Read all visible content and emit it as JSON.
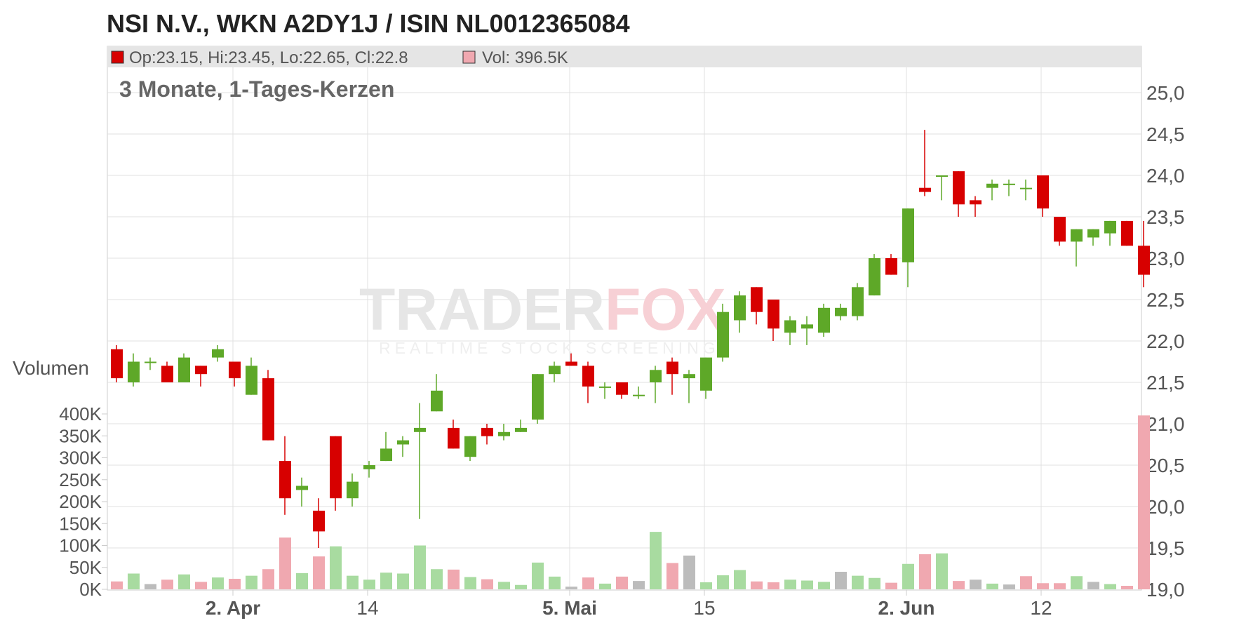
{
  "title": "NSI N.V., WKN A2DY1J / ISIN NL0012365084",
  "subtitle": "3 Monate, 1-Tages-Kerzen",
  "info": {
    "ohlc": "Op:23.15, Hi:23.45, Lo:22.65, Cl:22.8",
    "vol": "Vol: 396.5K"
  },
  "volume_label": "Volumen",
  "watermark": {
    "part1": "TRADER",
    "part2": "FOX",
    "tagline": "REALTIME STOCK SCREENING"
  },
  "colors": {
    "up": "#5ea828",
    "down": "#d70000",
    "vol_up": "#a8dba0",
    "vol_down": "#f0a8b0",
    "vol_neutral": "#bcbcbc",
    "info_bar": "#e5e5e5"
  },
  "chart_data": {
    "type": "candlestick",
    "price_ticks": [
      "25,0",
      "24,5",
      "24,0",
      "23,5",
      "23,0",
      "22,5",
      "22,0",
      "21,5",
      "21,0",
      "20,5",
      "20,0",
      "19,5",
      "19,0"
    ],
    "price_range": [
      19.0,
      25.0
    ],
    "volume_ticks": [
      "400K",
      "350K",
      "300K",
      "250K",
      "200K",
      "150K",
      "100K",
      "50K",
      "0K"
    ],
    "volume_range": [
      0,
      400000
    ],
    "x_ticks": [
      {
        "label": "2. Apr",
        "index": 7,
        "bold": true
      },
      {
        "label": "14",
        "index": 15,
        "bold": false
      },
      {
        "label": "5. Mai",
        "index": 27,
        "bold": true
      },
      {
        "label": "15",
        "index": 35,
        "bold": false
      },
      {
        "label": "2. Jun",
        "index": 47,
        "bold": true
      },
      {
        "label": "12",
        "index": 55,
        "bold": false
      }
    ],
    "candles": [
      {
        "o": 21.9,
        "h": 21.95,
        "l": 21.5,
        "c": 21.55,
        "v": 18000,
        "vc": "down"
      },
      {
        "o": 21.5,
        "h": 21.85,
        "l": 21.45,
        "c": 21.75,
        "v": 36000,
        "vc": "up"
      },
      {
        "o": 21.75,
        "h": 21.8,
        "l": 21.65,
        "c": 21.75,
        "v": 12000,
        "vc": "neutral"
      },
      {
        "o": 21.7,
        "h": 21.75,
        "l": 21.5,
        "c": 21.5,
        "v": 22000,
        "vc": "down"
      },
      {
        "o": 21.5,
        "h": 21.85,
        "l": 21.5,
        "c": 21.8,
        "v": 34000,
        "vc": "up"
      },
      {
        "o": 21.7,
        "h": 21.7,
        "l": 21.45,
        "c": 21.6,
        "v": 17000,
        "vc": "down"
      },
      {
        "o": 21.8,
        "h": 21.95,
        "l": 21.75,
        "c": 21.9,
        "v": 27000,
        "vc": "up"
      },
      {
        "o": 21.75,
        "h": 21.75,
        "l": 21.45,
        "c": 21.55,
        "v": 24000,
        "vc": "down"
      },
      {
        "o": 21.35,
        "h": 21.8,
        "l": 21.35,
        "c": 21.7,
        "v": 31000,
        "vc": "up"
      },
      {
        "o": 21.55,
        "h": 21.65,
        "l": 20.8,
        "c": 20.8,
        "v": 46000,
        "vc": "down"
      },
      {
        "o": 20.55,
        "h": 20.85,
        "l": 19.9,
        "c": 20.1,
        "v": 118000,
        "vc": "down"
      },
      {
        "o": 20.2,
        "h": 20.35,
        "l": 20.0,
        "c": 20.25,
        "v": 37000,
        "vc": "up"
      },
      {
        "o": 19.95,
        "h": 20.1,
        "l": 19.5,
        "c": 19.7,
        "v": 75000,
        "vc": "down"
      },
      {
        "o": 20.85,
        "h": 20.85,
        "l": 19.95,
        "c": 20.1,
        "v": 98000,
        "vc": "up"
      },
      {
        "o": 20.1,
        "h": 20.4,
        "l": 20.0,
        "c": 20.3,
        "v": 31000,
        "vc": "up"
      },
      {
        "o": 20.45,
        "h": 20.55,
        "l": 20.35,
        "c": 20.5,
        "v": 22000,
        "vc": "up"
      },
      {
        "o": 20.55,
        "h": 20.9,
        "l": 20.55,
        "c": 20.7,
        "v": 38000,
        "vc": "up"
      },
      {
        "o": 20.75,
        "h": 20.85,
        "l": 20.6,
        "c": 20.8,
        "v": 36000,
        "vc": "up"
      },
      {
        "o": 20.9,
        "h": 21.25,
        "l": 19.85,
        "c": 20.95,
        "v": 100000,
        "vc": "up"
      },
      {
        "o": 21.15,
        "h": 21.6,
        "l": 21.15,
        "c": 21.4,
        "v": 46000,
        "vc": "up"
      },
      {
        "o": 20.95,
        "h": 21.05,
        "l": 20.7,
        "c": 20.7,
        "v": 45000,
        "vc": "down"
      },
      {
        "o": 20.6,
        "h": 20.85,
        "l": 20.55,
        "c": 20.85,
        "v": 28000,
        "vc": "up"
      },
      {
        "o": 20.95,
        "h": 21.0,
        "l": 20.75,
        "c": 20.85,
        "v": 23000,
        "vc": "down"
      },
      {
        "o": 20.85,
        "h": 21.0,
        "l": 20.8,
        "c": 20.9,
        "v": 17000,
        "vc": "up"
      },
      {
        "o": 20.9,
        "h": 21.05,
        "l": 20.9,
        "c": 20.95,
        "v": 10000,
        "vc": "up"
      },
      {
        "o": 21.05,
        "h": 21.6,
        "l": 21.0,
        "c": 21.6,
        "v": 61000,
        "vc": "up"
      },
      {
        "o": 21.6,
        "h": 21.75,
        "l": 21.5,
        "c": 21.7,
        "v": 29000,
        "vc": "up"
      },
      {
        "o": 21.75,
        "h": 21.85,
        "l": 21.7,
        "c": 21.7,
        "v": 6000,
        "vc": "neutral"
      },
      {
        "o": 21.7,
        "h": 21.75,
        "l": 21.25,
        "c": 21.45,
        "v": 27000,
        "vc": "down"
      },
      {
        "o": 21.45,
        "h": 21.5,
        "l": 21.3,
        "c": 21.45,
        "v": 13000,
        "vc": "up"
      },
      {
        "o": 21.5,
        "h": 21.5,
        "l": 21.3,
        "c": 21.35,
        "v": 29000,
        "vc": "down"
      },
      {
        "o": 21.35,
        "h": 21.45,
        "l": 21.3,
        "c": 21.35,
        "v": 19000,
        "vc": "neutral"
      },
      {
        "o": 21.5,
        "h": 21.7,
        "l": 21.25,
        "c": 21.65,
        "v": 131000,
        "vc": "up"
      },
      {
        "o": 21.75,
        "h": 21.8,
        "l": 21.35,
        "c": 21.6,
        "v": 60000,
        "vc": "down"
      },
      {
        "o": 21.55,
        "h": 21.65,
        "l": 21.25,
        "c": 21.6,
        "v": 77000,
        "vc": "neutral"
      },
      {
        "o": 21.4,
        "h": 21.8,
        "l": 21.3,
        "c": 21.8,
        "v": 16000,
        "vc": "up"
      },
      {
        "o": 21.8,
        "h": 22.45,
        "l": 21.75,
        "c": 22.35,
        "v": 32000,
        "vc": "up"
      },
      {
        "o": 22.25,
        "h": 22.6,
        "l": 22.1,
        "c": 22.55,
        "v": 44000,
        "vc": "up"
      },
      {
        "o": 22.65,
        "h": 22.65,
        "l": 22.2,
        "c": 22.35,
        "v": 18000,
        "vc": "down"
      },
      {
        "o": 22.5,
        "h": 22.5,
        "l": 22.0,
        "c": 22.15,
        "v": 16000,
        "vc": "down"
      },
      {
        "o": 22.1,
        "h": 22.3,
        "l": 21.95,
        "c": 22.25,
        "v": 22000,
        "vc": "up"
      },
      {
        "o": 22.15,
        "h": 22.3,
        "l": 21.95,
        "c": 22.2,
        "v": 20000,
        "vc": "up"
      },
      {
        "o": 22.1,
        "h": 22.45,
        "l": 22.05,
        "c": 22.4,
        "v": 17000,
        "vc": "up"
      },
      {
        "o": 22.3,
        "h": 22.45,
        "l": 22.25,
        "c": 22.4,
        "v": 40000,
        "vc": "neutral"
      },
      {
        "o": 22.3,
        "h": 22.7,
        "l": 22.25,
        "c": 22.65,
        "v": 31000,
        "vc": "up"
      },
      {
        "o": 22.55,
        "h": 23.05,
        "l": 22.55,
        "c": 23.0,
        "v": 26000,
        "vc": "up"
      },
      {
        "o": 23.0,
        "h": 23.05,
        "l": 22.8,
        "c": 22.8,
        "v": 15000,
        "vc": "down"
      },
      {
        "o": 22.95,
        "h": 23.6,
        "l": 22.65,
        "c": 23.6,
        "v": 58000,
        "vc": "up"
      },
      {
        "o": 23.85,
        "h": 24.55,
        "l": 23.75,
        "c": 23.8,
        "v": 80000,
        "vc": "down"
      },
      {
        "o": 24.0,
        "h": 24.0,
        "l": 23.7,
        "c": 24.0,
        "v": 82000,
        "vc": "up"
      },
      {
        "o": 24.05,
        "h": 24.05,
        "l": 23.5,
        "c": 23.65,
        "v": 19000,
        "vc": "down"
      },
      {
        "o": 23.7,
        "h": 23.75,
        "l": 23.5,
        "c": 23.65,
        "v": 22000,
        "vc": "neutral"
      },
      {
        "o": 23.85,
        "h": 23.95,
        "l": 23.7,
        "c": 23.9,
        "v": 13000,
        "vc": "up"
      },
      {
        "o": 23.9,
        "h": 23.95,
        "l": 23.75,
        "c": 23.9,
        "v": 11000,
        "vc": "neutral"
      },
      {
        "o": 23.85,
        "h": 23.95,
        "l": 23.7,
        "c": 23.85,
        "v": 30000,
        "vc": "down"
      },
      {
        "o": 24.0,
        "h": 24.0,
        "l": 23.5,
        "c": 23.6,
        "v": 14000,
        "vc": "down"
      },
      {
        "o": 23.5,
        "h": 23.5,
        "l": 23.15,
        "c": 23.2,
        "v": 14000,
        "vc": "down"
      },
      {
        "o": 23.2,
        "h": 23.35,
        "l": 22.9,
        "c": 23.35,
        "v": 30000,
        "vc": "up"
      },
      {
        "o": 23.25,
        "h": 23.35,
        "l": 23.15,
        "c": 23.35,
        "v": 17000,
        "vc": "neutral"
      },
      {
        "o": 23.3,
        "h": 23.45,
        "l": 23.15,
        "c": 23.45,
        "v": 12000,
        "vc": "up"
      },
      {
        "o": 23.45,
        "h": 23.45,
        "l": 23.15,
        "c": 23.15,
        "v": 8000,
        "vc": "down"
      },
      {
        "o": 23.15,
        "h": 23.45,
        "l": 22.65,
        "c": 22.8,
        "v": 396500,
        "vc": "down"
      }
    ]
  }
}
